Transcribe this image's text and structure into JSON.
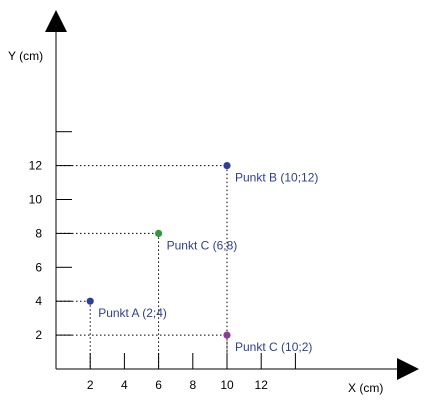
{
  "colors": {
    "axis": "#000000",
    "guide": "#000000",
    "blue": "#2e3f9a",
    "green": "#2f9a3a",
    "purple": "#8e3b95",
    "label_text": "#2d3f93"
  },
  "chart_data": {
    "type": "scatter",
    "xlabel": "X (cm)",
    "ylabel": "Y (cm)",
    "x_ticks": [
      2,
      4,
      6,
      8,
      10,
      12
    ],
    "x_tick_marks": [
      2,
      4,
      6,
      8,
      10,
      12,
      14
    ],
    "y_ticks": [
      2,
      4,
      6,
      8,
      10,
      12
    ],
    "y_tick_marks": [
      2,
      4,
      6,
      8,
      10,
      12,
      14
    ],
    "grid": false,
    "points": [
      {
        "label": "Punkt A (2;4)",
        "x": 2,
        "y": 4,
        "color": "blue"
      },
      {
        "label": "Punkt B (10;12)",
        "x": 10,
        "y": 12,
        "color": "blue"
      },
      {
        "label": "Punkt C (6;8)",
        "x": 6,
        "y": 8,
        "color": "green"
      },
      {
        "label": "Punkt C (10;2)",
        "x": 10,
        "y": 2,
        "color": "purple"
      }
    ]
  }
}
